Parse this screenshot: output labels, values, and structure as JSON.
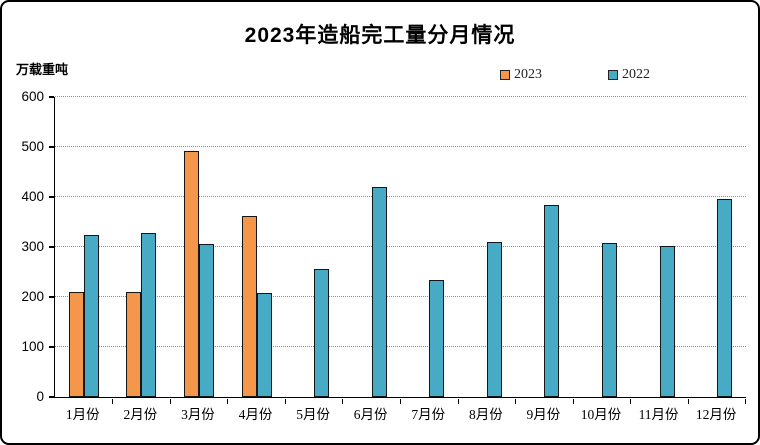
{
  "chart_data": {
    "type": "bar",
    "title": "2023年造船完工量分月情况",
    "ylabel": "万载重吨",
    "xlabel": "",
    "categories": [
      "1月份",
      "2月份",
      "3月份",
      "4月份",
      "5月份",
      "6月份",
      "7月份",
      "8月份",
      "9月份",
      "10月份",
      "11月份",
      "12月份"
    ],
    "series": [
      {
        "name": "2023",
        "color": "#F4974B",
        "values": [
          211,
          210,
          493,
          363,
          null,
          null,
          null,
          null,
          null,
          null,
          null,
          null
        ]
      },
      {
        "name": "2022",
        "color": "#47ABC6",
        "values": [
          325,
          328,
          307,
          208,
          256,
          421,
          235,
          310,
          385,
          308,
          303,
          396
        ]
      }
    ],
    "ylim": [
      0,
      600
    ],
    "ytick_interval": 100,
    "grid": "horizontal-dotted",
    "legend_position": "top",
    "colors": {
      "bar_outline": "#161616",
      "gridline": "#8f8f8f",
      "axis": "#000000",
      "background": "#ffffff",
      "frame_border": "#000000"
    }
  }
}
